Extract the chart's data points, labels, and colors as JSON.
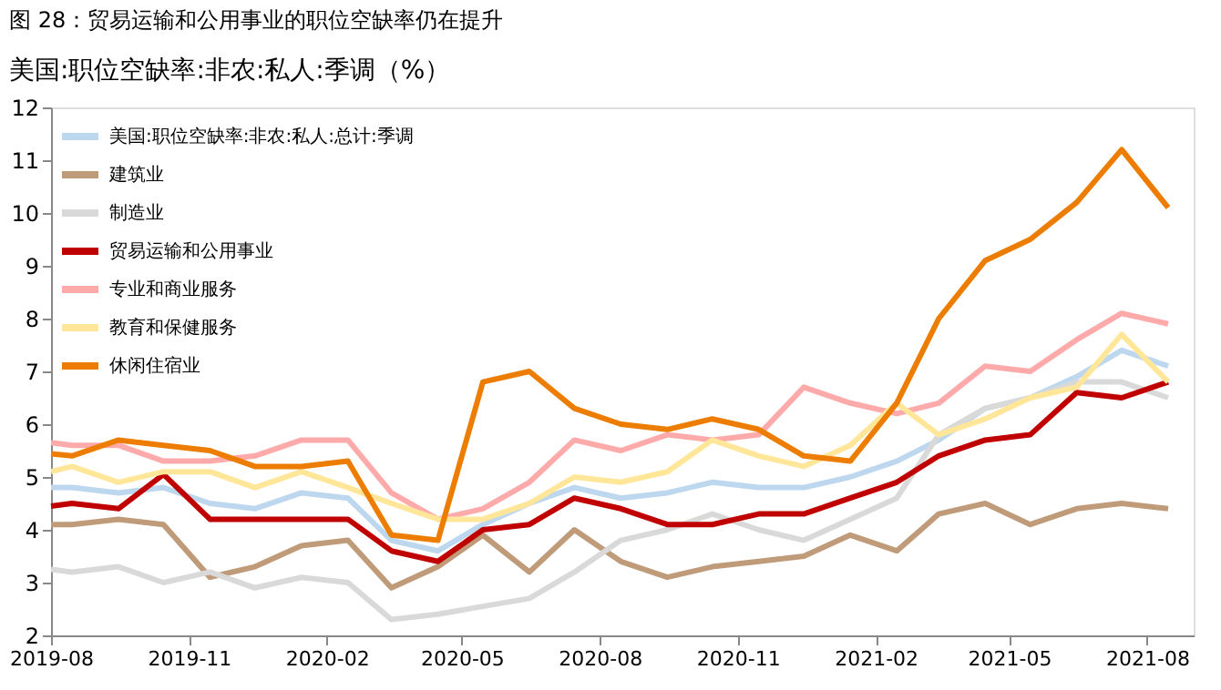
{
  "chart_data": {
    "type": "line",
    "title": "图 28：贸易运输和公用事业的职位空缺率仍在提升",
    "subtitle": "美国:职位空缺率:非农:私人:季调（%）",
    "x": [
      "2019-08-01",
      "2019-08-15",
      "2019-09-15",
      "2019-10-15",
      "2019-11-15",
      "2019-12-15",
      "2020-01-15",
      "2020-02-15",
      "2020-03-15",
      "2020-04-15",
      "2020-05-15",
      "2020-06-15",
      "2020-07-15",
      "2020-08-15",
      "2020-09-15",
      "2020-10-15",
      "2020-11-15",
      "2020-12-15",
      "2021-01-15",
      "2021-02-15",
      "2021-03-15",
      "2021-04-15",
      "2021-05-15",
      "2021-06-15",
      "2021-07-15",
      "2021-08-15"
    ],
    "xlim": [
      "2019-08-01",
      "2021-09-01"
    ],
    "xticks": [
      "2019-08",
      "2019-11",
      "2020-02",
      "2020-05",
      "2020-08",
      "2020-11",
      "2021-02",
      "2021-05",
      "2021-08"
    ],
    "ylim": [
      2,
      12
    ],
    "yticks": [
      2,
      3,
      4,
      5,
      6,
      7,
      8,
      9,
      10,
      11,
      12
    ],
    "grid": false,
    "legend": "top left",
    "line_style": "solid",
    "marker": "none",
    "series": [
      {
        "name": "美国:职位空缺率:非农:私人:总计:季调",
        "color": "#bdd7ee",
        "values": [
          4.8,
          4.8,
          4.7,
          4.8,
          4.5,
          4.4,
          4.7,
          4.6,
          3.8,
          3.6,
          4.1,
          4.5,
          4.8,
          4.6,
          4.7,
          4.9,
          4.8,
          4.8,
          5.0,
          5.3,
          5.7,
          6.3,
          6.5,
          6.9,
          7.4,
          7.1
        ]
      },
      {
        "name": "建筑业",
        "color": "#bf9b7a",
        "values": [
          4.1,
          4.1,
          4.2,
          4.1,
          3.1,
          3.3,
          3.7,
          3.8,
          2.9,
          3.3,
          3.9,
          3.2,
          4.0,
          3.4,
          3.1,
          3.3,
          3.4,
          3.5,
          3.9,
          3.6,
          4.3,
          4.5,
          4.1,
          4.4,
          4.5,
          4.4
        ]
      },
      {
        "name": "制造业",
        "color": "#d9d9d9",
        "values": [
          3.25,
          3.2,
          3.3,
          3.0,
          3.2,
          2.9,
          3.1,
          3.0,
          2.3,
          2.4,
          2.55,
          2.7,
          3.2,
          3.8,
          4.0,
          4.3,
          4.0,
          3.8,
          4.2,
          4.6,
          5.8,
          6.3,
          6.5,
          6.8,
          6.8,
          6.5
        ]
      },
      {
        "name": "贸易运输和公用事业",
        "color": "#c00000",
        "values": [
          4.45,
          4.5,
          4.4,
          5.05,
          4.2,
          4.2,
          4.2,
          4.2,
          3.6,
          3.4,
          4.0,
          4.1,
          4.6,
          4.4,
          4.1,
          4.1,
          4.3,
          4.3,
          4.6,
          4.9,
          5.4,
          5.7,
          5.8,
          6.6,
          6.5,
          6.8
        ]
      },
      {
        "name": "专业和商业服务",
        "color": "#ffaaaa",
        "values": [
          5.65,
          5.6,
          5.6,
          5.3,
          5.3,
          5.4,
          5.7,
          5.7,
          4.7,
          4.2,
          4.4,
          4.9,
          5.7,
          5.5,
          5.8,
          5.7,
          5.8,
          6.7,
          6.4,
          6.2,
          6.4,
          7.1,
          7.0,
          7.6,
          8.1,
          7.9
        ]
      },
      {
        "name": "教育和保健服务",
        "color": "#ffe699",
        "values": [
          5.1,
          5.2,
          4.9,
          5.1,
          5.1,
          4.8,
          5.1,
          4.8,
          4.5,
          4.2,
          4.2,
          4.5,
          5.0,
          4.9,
          5.1,
          5.7,
          5.4,
          5.2,
          5.6,
          6.4,
          5.8,
          6.1,
          6.5,
          6.7,
          7.7,
          6.8
        ]
      },
      {
        "name": "休闲住宿业",
        "color": "#ed7d00",
        "values": [
          5.44,
          5.4,
          5.7,
          5.6,
          5.5,
          5.2,
          5.2,
          5.3,
          3.9,
          3.8,
          6.8,
          7.0,
          6.3,
          6.0,
          5.9,
          6.1,
          5.9,
          5.4,
          5.3,
          6.4,
          8.0,
          9.1,
          9.5,
          10.2,
          11.2,
          10.1
        ]
      }
    ]
  }
}
